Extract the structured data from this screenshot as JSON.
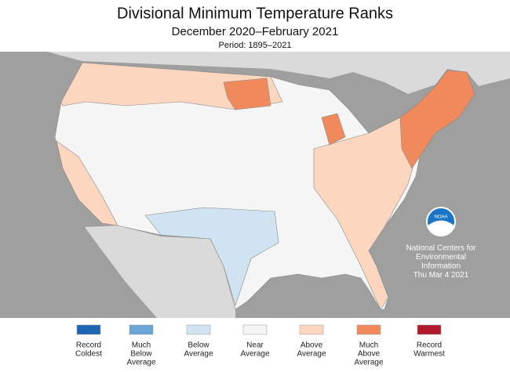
{
  "header": {
    "title": "Divisional Minimum Temperature Ranks",
    "subtitle": "December 2020–February 2021",
    "period": "Period: 1895–2021"
  },
  "legend": [
    {
      "lines": [
        "Record",
        "Coldest"
      ],
      "color": "#1f66b2"
    },
    {
      "lines": [
        "Much",
        "Below",
        "Average"
      ],
      "color": "#6aa6d5"
    },
    {
      "lines": [
        "Below",
        "Average"
      ],
      "color": "#cfe3f1"
    },
    {
      "lines": [
        "Near",
        "Average"
      ],
      "color": "#f5f5f5"
    },
    {
      "lines": [
        "Above",
        "Average"
      ],
      "color": "#fdd6bf"
    },
    {
      "lines": [
        "Much",
        "Above",
        "Average"
      ],
      "color": "#f08a5c"
    },
    {
      "lines": [
        "Record",
        "Warmest"
      ],
      "color": "#b3192c"
    }
  ],
  "logo": {
    "text": "NOAA"
  },
  "credit": {
    "lines": [
      "National Centers for",
      "Environmental",
      "Information",
      "Thu Mar  4 2021"
    ]
  }
}
